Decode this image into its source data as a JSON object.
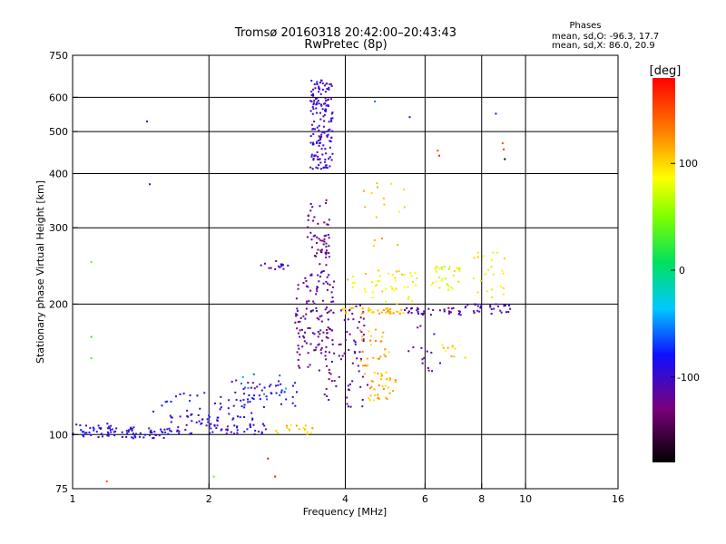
{
  "chart_data": {
    "type": "scatter",
    "title": "Tromsø 20160318 20:42:00–20:43:43",
    "subtitle": "RwPretec (8p)",
    "stats": {
      "heading": "Phases",
      "line_o": "mean, sd,O: -96.3, 17.7",
      "line_x": "mean, sd,X:  86.0, 20.9"
    },
    "xlabel": "Frequency [MHz]",
    "ylabel": "Stationary phase Virtual Height [km]",
    "xscale": "log",
    "yscale": "log",
    "xlim": [
      1,
      16
    ],
    "ylim": [
      75,
      750
    ],
    "xticks": [
      {
        "v": 1,
        "label": "1"
      },
      {
        "v": 2,
        "label": "2"
      },
      {
        "v": 4,
        "label": "4"
      },
      {
        "v": 6,
        "label": "6"
      },
      {
        "v": 8,
        "label": "8"
      },
      {
        "v": 10,
        "label": "10"
      },
      {
        "v": 16,
        "label": "16"
      }
    ],
    "yticks": [
      {
        "v": 75,
        "label": "75"
      },
      {
        "v": 100,
        "label": "100"
      },
      {
        "v": 200,
        "label": "200"
      },
      {
        "v": 300,
        "label": "300"
      },
      {
        "v": 400,
        "label": "400"
      },
      {
        "v": 500,
        "label": "500"
      },
      {
        "v": 600,
        "label": "600"
      },
      {
        "v": 750,
        "label": "750"
      }
    ],
    "xgrid": [
      1,
      2,
      4,
      6,
      8,
      10
    ],
    "ygrid": [
      100,
      200,
      300,
      400,
      500,
      600
    ],
    "colorbar": {
      "label": "[deg]",
      "range": [
        -180,
        180
      ],
      "ticks": [
        {
          "v": 100,
          "label": "100"
        },
        {
          "v": 0,
          "label": "0"
        },
        {
          "v": -100,
          "label": "-100"
        }
      ]
    },
    "clusters": [
      {
        "f": [
          1.0,
          1.25
        ],
        "h": [
          98,
          106
        ],
        "phase": -90,
        "n": 45
      },
      {
        "f": [
          1.25,
          1.6
        ],
        "h": [
          98,
          104
        ],
        "phase": -95,
        "n": 40
      },
      {
        "f": [
          1.6,
          2.1
        ],
        "h": [
          100,
          112
        ],
        "phase": -95,
        "n": 40
      },
      {
        "f": [
          2.0,
          2.7
        ],
        "h": [
          100,
          106
        ],
        "phase": -100,
        "n": 35
      },
      {
        "f": [
          2.8,
          3.4
        ],
        "h": [
          100,
          106
        ],
        "phase": 110,
        "n": 18
      },
      {
        "f": [
          1.5,
          2.6
        ],
        "h": [
          108,
          125
        ],
        "phase": -90,
        "n": 40
      },
      {
        "f": [
          2.2,
          3.2
        ],
        "h": [
          115,
          135
        ],
        "phase": -95,
        "n": 40
      },
      {
        "f": [
          2.3,
          3.1
        ],
        "h": [
          120,
          140
        ],
        "phase": -60,
        "n": 15
      },
      {
        "f": [
          3.1,
          3.8
        ],
        "h": [
          140,
          230
        ],
        "phase": -120,
        "n": 120
      },
      {
        "f": [
          3.3,
          3.7
        ],
        "h": [
          230,
          350
        ],
        "phase": -120,
        "n": 45
      },
      {
        "f": [
          3.35,
          3.75
        ],
        "h": [
          410,
          660
        ],
        "phase": -100,
        "n": 160
      },
      {
        "f": [
          3.6,
          4.5
        ],
        "h": [
          115,
          200
        ],
        "phase": -115,
        "n": 70
      },
      {
        "f": [
          4.3,
          5.0
        ],
        "h": [
          135,
          175
        ],
        "phase": 115,
        "n": 35
      },
      {
        "f": [
          4.5,
          5.2
        ],
        "h": [
          120,
          135
        ],
        "phase": 110,
        "n": 30
      },
      {
        "f": [
          3.9,
          5.4
        ],
        "h": [
          190,
          196
        ],
        "phase": 110,
        "n": 40
      },
      {
        "f": [
          5.4,
          7.2
        ],
        "h": [
          188,
          196
        ],
        "phase": -110,
        "n": 35
      },
      {
        "f": [
          7.2,
          9.3
        ],
        "h": [
          190,
          200
        ],
        "phase": -105,
        "n": 30
      },
      {
        "f": [
          4.0,
          5.8
        ],
        "h": [
          200,
          240
        ],
        "phase": 90,
        "n": 45
      },
      {
        "f": [
          6.2,
          7.2
        ],
        "h": [
          215,
          245
        ],
        "phase": 80,
        "n": 30
      },
      {
        "f": [
          7.5,
          9.0
        ],
        "h": [
          205,
          265
        ],
        "phase": 90,
        "n": 25
      },
      {
        "f": [
          5.5,
          6.5
        ],
        "h": [
          140,
          180
        ],
        "phase": -110,
        "n": 15
      },
      {
        "f": [
          6.5,
          7.5
        ],
        "h": [
          150,
          165
        ],
        "phase": 100,
        "n": 10
      },
      {
        "f": [
          4.2,
          5.6
        ],
        "h": [
          265,
          380
        ],
        "phase": 105,
        "n": 15
      },
      {
        "f": [
          2.6,
          3.0
        ],
        "h": [
          240,
          252
        ],
        "phase": -105,
        "n": 15
      },
      {
        "f": [
          3.4,
          3.7
        ],
        "h": [
          255,
          290
        ],
        "phase": -125,
        "n": 20
      }
    ],
    "isolated": [
      {
        "f": 1.46,
        "h": 528,
        "phase": -100
      },
      {
        "f": 1.48,
        "h": 378,
        "phase": -100
      },
      {
        "f": 4.65,
        "h": 587,
        "phase": -60
      },
      {
        "f": 5.55,
        "h": 540,
        "phase": -90
      },
      {
        "f": 8.6,
        "h": 550,
        "phase": -100
      },
      {
        "f": 6.4,
        "h": 452,
        "phase": 150
      },
      {
        "f": 6.45,
        "h": 440,
        "phase": 165
      },
      {
        "f": 8.9,
        "h": 470,
        "phase": 150
      },
      {
        "f": 8.95,
        "h": 455,
        "phase": 160
      },
      {
        "f": 9.0,
        "h": 432,
        "phase": -175
      },
      {
        "f": 4.7,
        "h": 380,
        "phase": 110
      },
      {
        "f": 1.1,
        "h": 250,
        "phase": 40
      },
      {
        "f": 1.1,
        "h": 168,
        "phase": 20
      },
      {
        "f": 1.1,
        "h": 150,
        "phase": 30
      },
      {
        "f": 1.19,
        "h": 78,
        "phase": 150
      },
      {
        "f": 2.05,
        "h": 80,
        "phase": 40
      },
      {
        "f": 2.7,
        "h": 88,
        "phase": 175
      },
      {
        "f": 2.8,
        "h": 80,
        "phase": 175
      }
    ]
  }
}
